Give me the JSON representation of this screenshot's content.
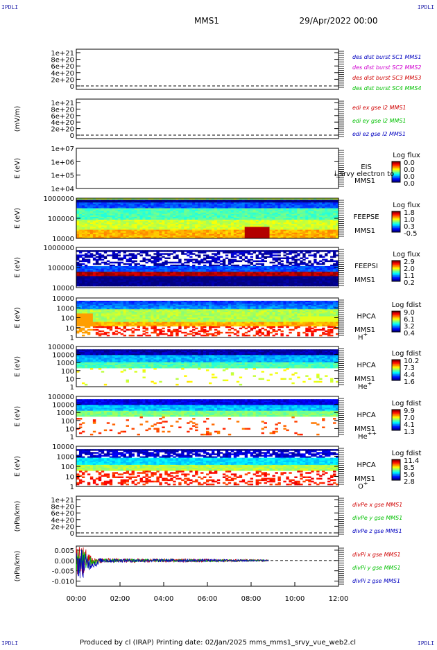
{
  "header": {
    "spacecraft": "MMS1",
    "date": "29/Apr/2022 00:00"
  },
  "corners": {
    "top_left": "IPDLI",
    "top_right": "IPDLI",
    "bottom_left": "IPDLI",
    "bottom_right": "IPDLI"
  },
  "footer": "Produced by cl (IRAP)   Printing date: 02/Jan/2025   mms_mms1_srvy_vue_web2.cl",
  "colors": {
    "dark_blue": "#0000c0",
    "magenta": "#d000d0",
    "red": "#d00000",
    "green": "#00c000",
    "blue": "#0000ff"
  },
  "chart_data": [
    {
      "type": "line",
      "id": "des_dist",
      "ylabel": "",
      "yticks": [
        "1e+21",
        "8e+20",
        "6e+20",
        "4e+20",
        "2e+20",
        "0"
      ],
      "legend": [
        {
          "name": "des dist burst SC1 MMS1",
          "color": "#0000c0"
        },
        {
          "name": "des dist burst SC2 MMS2",
          "color": "#d000d0"
        },
        {
          "name": "des dist burst SC3 MMS3",
          "color": "#d00000"
        },
        {
          "name": "des dist burst SC4 MMS4",
          "color": "#00c000"
        }
      ]
    },
    {
      "type": "line",
      "id": "edi",
      "ylabel": "(mV/m)",
      "yticks": [
        "1e+21",
        "8e+20",
        "6e+20",
        "4e+20",
        "2e+20",
        "0"
      ],
      "legend": [
        {
          "name": "edi ex gse l2 MMS1",
          "color": "#d00000"
        },
        {
          "name": "edi ey gse l2 MMS1",
          "color": "#00c000"
        },
        {
          "name": "edi ez gse l2 MMS1",
          "color": "#0000c0"
        }
      ]
    },
    {
      "type": "heatmap",
      "id": "eis",
      "ylabel": "E (eV)",
      "yticks": [
        "1e+07",
        "1e+06",
        "1e+05",
        "1e+04"
      ],
      "labels": [
        "EIS",
        "MMS1"
      ],
      "overlay_text": "i_srvy electron to",
      "colorbar_title": "Log flux",
      "colorbar_ticks": [
        "0.0",
        "0.0",
        "0.0",
        "0.0"
      ]
    },
    {
      "type": "heatmap",
      "id": "feepse",
      "ylabel": "E (eV)",
      "yticks": [
        "1000000",
        "100000",
        "10000"
      ],
      "labels": [
        "FEEPSE",
        "MMS1"
      ],
      "colorbar_title": "Log flux",
      "colorbar_ticks": [
        "1.8",
        "1.0",
        "0.3",
        "-0.5"
      ]
    },
    {
      "type": "heatmap",
      "id": "feepsi",
      "ylabel": "E (eV)",
      "yticks": [
        "1000000",
        "100000",
        "10000"
      ],
      "labels": [
        "FEEPSI",
        "MMS1"
      ],
      "colorbar_title": "Log flux",
      "colorbar_ticks": [
        "2.9",
        "2.0",
        "1.1",
        "0.2"
      ]
    },
    {
      "type": "heatmap",
      "id": "hpca_h",
      "ylabel": "E (eV)",
      "yticks": [
        "10000",
        "1000",
        "100",
        "10",
        "1"
      ],
      "labels": [
        "HPCA",
        "MMS1"
      ],
      "species": "H",
      "charge": "+",
      "colorbar_title": "Log fdist",
      "colorbar_ticks": [
        "9.0",
        "6.1",
        "3.2",
        "0.4"
      ]
    },
    {
      "type": "heatmap",
      "id": "hpca_he",
      "ylabel": "E (eV)",
      "yticks": [
        "100000",
        "10000",
        "1000",
        "100",
        "10",
        "1"
      ],
      "labels": [
        "HPCA",
        "MMS1"
      ],
      "species": "He",
      "charge": "+",
      "colorbar_title": "Log fdist",
      "colorbar_ticks": [
        "10.2",
        "7.3",
        "4.4",
        "1.6"
      ]
    },
    {
      "type": "heatmap",
      "id": "hpca_hepp",
      "ylabel": "E (eV)",
      "yticks": [
        "100000",
        "10000",
        "1000",
        "100",
        "10",
        "1"
      ],
      "labels": [
        "HPCA",
        "MMS1"
      ],
      "species": "He",
      "charge": "++",
      "colorbar_title": "Log fdist",
      "colorbar_ticks": [
        "9.9",
        "7.0",
        "4.1",
        "1.3"
      ]
    },
    {
      "type": "heatmap",
      "id": "hpca_o",
      "ylabel": "E (eV)",
      "yticks": [
        "10000",
        "1000",
        "100",
        "10",
        "1"
      ],
      "labels": [
        "HPCA",
        "MMS1"
      ],
      "species": "O",
      "charge": "+",
      "colorbar_title": "Log fdist",
      "colorbar_ticks": [
        "11.4",
        "8.5",
        "5.6",
        "2.8"
      ]
    },
    {
      "type": "line",
      "id": "divpe",
      "ylabel": "(nPa/km)",
      "yticks": [
        "1e+21",
        "8e+20",
        "6e+20",
        "4e+20",
        "2e+20",
        "0"
      ],
      "legend": [
        {
          "name": "divPe x gse MMS1",
          "color": "#d00000"
        },
        {
          "name": "divPe y gse MMS1",
          "color": "#00c000"
        },
        {
          "name": "divPe z gse MMS1",
          "color": "#0000c0"
        }
      ]
    },
    {
      "type": "line",
      "id": "divpi",
      "ylabel": "(nPa/km)",
      "yticks": [
        "0.005",
        "0.000",
        "-0.005",
        "-0.010"
      ],
      "ylim": [
        -0.0125,
        0.007
      ],
      "xlim_hours": [
        0,
        12
      ],
      "xticks": [
        "00:00",
        "02:00",
        "04:00",
        "06:00",
        "08:00",
        "10:00",
        "12:00"
      ],
      "legend": [
        {
          "name": "divPi x gse MMS1",
          "color": "#d00000"
        },
        {
          "name": "divPi y gse MMS1",
          "color": "#00c000"
        },
        {
          "name": "divPi z gse MMS1",
          "color": "#0000c0"
        }
      ],
      "data_end_hour": 8.8,
      "envelope": {
        "hours": [
          0.0,
          0.25,
          0.5,
          0.75,
          1.0,
          2.0,
          4.0,
          6.0,
          8.0,
          8.8
        ],
        "amplitude": [
          0.006,
          0.008,
          0.004,
          0.002,
          0.0012,
          0.0009,
          0.0008,
          0.0007,
          0.0005,
          0.0004
        ]
      }
    }
  ]
}
